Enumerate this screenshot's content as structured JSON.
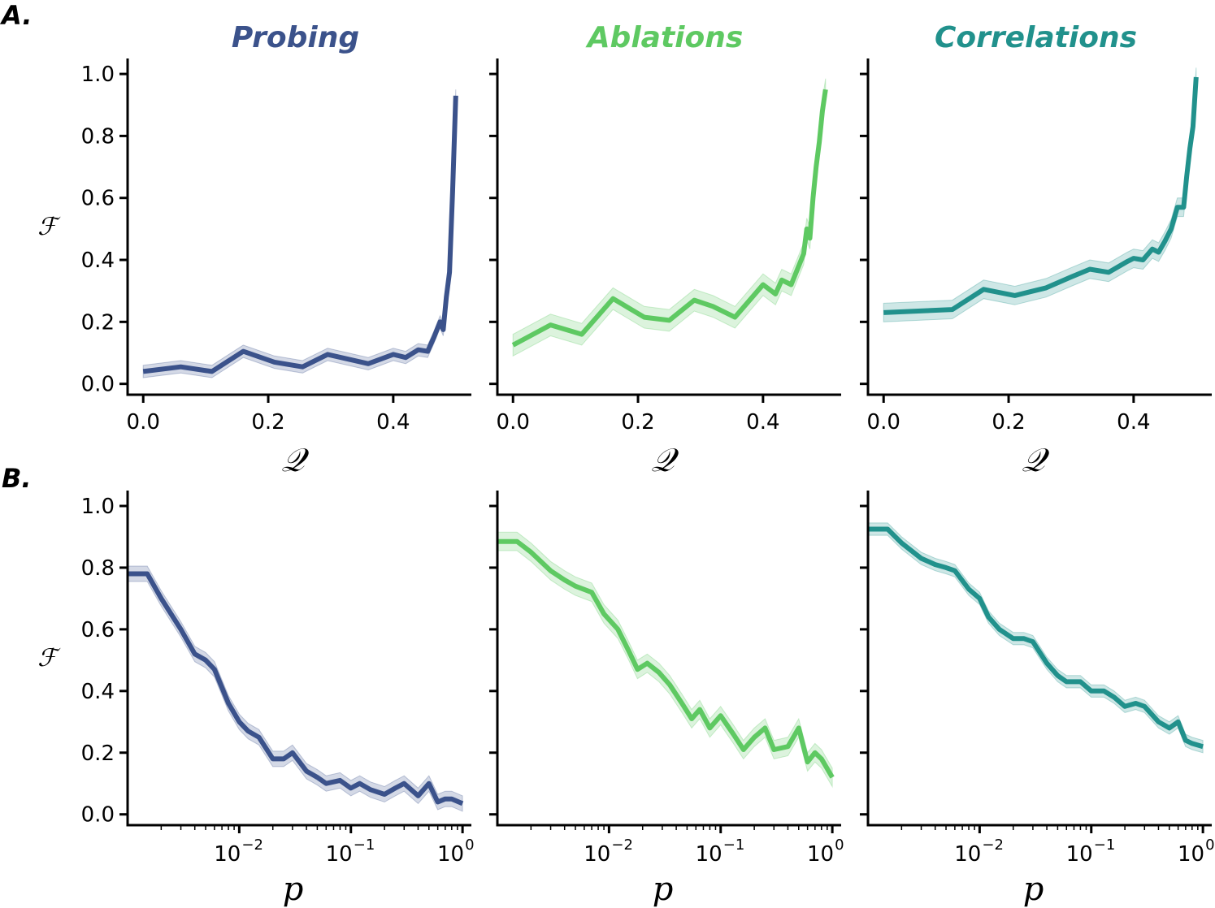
{
  "panel_labels": [
    "A.",
    "B."
  ],
  "colors": {
    "Probing": "#3b528b",
    "Ablations": "#5ec962",
    "Correlations": "#21918c"
  },
  "chart_data": [
    {
      "type": "line",
      "row": "A",
      "title": "Probing",
      "color": "#3b528b",
      "xlabel": "𝒬",
      "ylabel": "ℱ",
      "xscale": "linear",
      "xlim": [
        -0.025,
        0.525
      ],
      "ylim": [
        -0.035,
        1.05
      ],
      "xticks": [
        0.0,
        0.2,
        0.4
      ],
      "xtick_labels": [
        "0.0",
        "0.2",
        "0.4"
      ],
      "yticks": [
        0.0,
        0.2,
        0.4,
        0.6,
        0.8,
        1.0
      ],
      "ytick_labels": [
        "0.0",
        "0.2",
        "0.4",
        "0.6",
        "0.8",
        "1.0"
      ],
      "band": 0.02,
      "x": [
        0.0,
        0.06,
        0.11,
        0.16,
        0.21,
        0.255,
        0.295,
        0.36,
        0.4,
        0.42,
        0.44,
        0.455,
        0.465,
        0.475,
        0.48,
        0.485,
        0.49,
        0.495,
        0.5
      ],
      "y": [
        0.04,
        0.055,
        0.04,
        0.105,
        0.07,
        0.055,
        0.095,
        0.065,
        0.095,
        0.085,
        0.11,
        0.105,
        0.15,
        0.2,
        0.175,
        0.28,
        0.36,
        0.62,
        0.93
      ]
    },
    {
      "type": "line",
      "row": "A",
      "title": "Ablations",
      "color": "#5ec962",
      "xlabel": "𝒬",
      "ylabel": "",
      "xscale": "linear",
      "xlim": [
        -0.025,
        0.525
      ],
      "ylim": [
        -0.035,
        1.05
      ],
      "xticks": [
        0.0,
        0.2,
        0.4
      ],
      "xtick_labels": [
        "0.0",
        "0.2",
        "0.4"
      ],
      "yticks": [
        0.0,
        0.2,
        0.4,
        0.6,
        0.8,
        1.0
      ],
      "ytick_labels": [
        "",
        "",
        "",
        "",
        "",
        ""
      ],
      "band": 0.035,
      "x": [
        0.0,
        0.06,
        0.11,
        0.16,
        0.21,
        0.25,
        0.29,
        0.32,
        0.355,
        0.4,
        0.42,
        0.43,
        0.445,
        0.455,
        0.465,
        0.47,
        0.475,
        0.48,
        0.485,
        0.49,
        0.495,
        0.5
      ],
      "y": [
        0.125,
        0.19,
        0.16,
        0.275,
        0.215,
        0.205,
        0.27,
        0.25,
        0.215,
        0.32,
        0.29,
        0.335,
        0.32,
        0.37,
        0.42,
        0.5,
        0.47,
        0.6,
        0.7,
        0.78,
        0.88,
        0.95
      ]
    },
    {
      "type": "line",
      "row": "A",
      "title": "Correlations",
      "color": "#21918c",
      "xlabel": "𝒬",
      "ylabel": "",
      "xscale": "linear",
      "xlim": [
        -0.025,
        0.525
      ],
      "ylim": [
        -0.035,
        1.05
      ],
      "xticks": [
        0.0,
        0.2,
        0.4
      ],
      "xtick_labels": [
        "0.0",
        "0.2",
        "0.4"
      ],
      "yticks": [
        0.0,
        0.2,
        0.4,
        0.6,
        0.8,
        1.0
      ],
      "ytick_labels": [
        "",
        "",
        "",
        "",
        "",
        ""
      ],
      "band": 0.03,
      "x": [
        0.0,
        0.11,
        0.16,
        0.21,
        0.26,
        0.3,
        0.33,
        0.36,
        0.39,
        0.4,
        0.415,
        0.43,
        0.44,
        0.45,
        0.46,
        0.47,
        0.48,
        0.485,
        0.49,
        0.495,
        0.5
      ],
      "y": [
        0.23,
        0.24,
        0.305,
        0.285,
        0.31,
        0.345,
        0.37,
        0.36,
        0.395,
        0.405,
        0.4,
        0.435,
        0.425,
        0.46,
        0.5,
        0.57,
        0.57,
        0.67,
        0.76,
        0.83,
        0.99
      ]
    },
    {
      "type": "line",
      "row": "B",
      "title": "",
      "color": "#3b528b",
      "xlabel": "p",
      "ylabel": "ℱ",
      "xscale": "log",
      "xlim": [
        0.001,
        1.2
      ],
      "ylim": [
        -0.035,
        1.05
      ],
      "xticks": [
        0.01,
        0.1,
        1
      ],
      "xtick_bases": [
        "10",
        "10",
        "10"
      ],
      "xtick_exps": [
        "−2",
        "−1",
        "0"
      ],
      "yticks": [
        0.0,
        0.2,
        0.4,
        0.6,
        0.8,
        1.0
      ],
      "ytick_labels": [
        "0.0",
        "0.2",
        "0.4",
        "0.6",
        "0.8",
        "1.0"
      ],
      "band": 0.025,
      "x": [
        0.001,
        0.0015,
        0.002,
        0.003,
        0.004,
        0.005,
        0.006,
        0.008,
        0.01,
        0.012,
        0.015,
        0.02,
        0.025,
        0.03,
        0.04,
        0.05,
        0.06,
        0.08,
        0.1,
        0.12,
        0.15,
        0.2,
        0.25,
        0.3,
        0.4,
        0.5,
        0.6,
        0.7,
        0.8,
        1.0
      ],
      "y": [
        0.78,
        0.78,
        0.7,
        0.6,
        0.52,
        0.5,
        0.47,
        0.36,
        0.3,
        0.27,
        0.25,
        0.18,
        0.18,
        0.2,
        0.14,
        0.12,
        0.1,
        0.11,
        0.085,
        0.1,
        0.08,
        0.065,
        0.085,
        0.1,
        0.06,
        0.1,
        0.04,
        0.05,
        0.05,
        0.035
      ]
    },
    {
      "type": "line",
      "row": "B",
      "title": "",
      "color": "#5ec962",
      "xlabel": "p",
      "ylabel": "",
      "xscale": "log",
      "xlim": [
        0.001,
        1.2
      ],
      "ylim": [
        -0.035,
        1.05
      ],
      "xticks": [
        0.01,
        0.1,
        1
      ],
      "xtick_bases": [
        "10",
        "10",
        "10"
      ],
      "xtick_exps": [
        "−2",
        "−1",
        "0"
      ],
      "yticks": [
        0.0,
        0.2,
        0.4,
        0.6,
        0.8,
        1.0
      ],
      "ytick_labels": [
        "",
        "",
        "",
        "",
        "",
        ""
      ],
      "band": 0.03,
      "x": [
        0.001,
        0.0015,
        0.002,
        0.003,
        0.004,
        0.005,
        0.007,
        0.009,
        0.012,
        0.015,
        0.018,
        0.022,
        0.028,
        0.035,
        0.045,
        0.055,
        0.065,
        0.08,
        0.1,
        0.13,
        0.16,
        0.2,
        0.25,
        0.3,
        0.4,
        0.5,
        0.6,
        0.7,
        0.8,
        1.0
      ],
      "y": [
        0.885,
        0.885,
        0.85,
        0.79,
        0.76,
        0.74,
        0.72,
        0.65,
        0.6,
        0.53,
        0.47,
        0.49,
        0.46,
        0.42,
        0.36,
        0.31,
        0.34,
        0.28,
        0.32,
        0.26,
        0.21,
        0.25,
        0.28,
        0.21,
        0.22,
        0.28,
        0.17,
        0.2,
        0.18,
        0.12
      ]
    },
    {
      "type": "line",
      "row": "B",
      "title": "",
      "color": "#21918c",
      "xlabel": "p",
      "ylabel": "",
      "xscale": "log",
      "xlim": [
        0.001,
        1.2
      ],
      "ylim": [
        -0.035,
        1.05
      ],
      "xticks": [
        0.01,
        0.1,
        1
      ],
      "xtick_bases": [
        "10",
        "10",
        "10"
      ],
      "xtick_exps": [
        "−2",
        "−1",
        "0"
      ],
      "yticks": [
        0.0,
        0.2,
        0.4,
        0.6,
        0.8,
        1.0
      ],
      "ytick_labels": [
        "",
        "",
        "",
        "",
        "",
        ""
      ],
      "band": 0.02,
      "x": [
        0.001,
        0.0015,
        0.002,
        0.003,
        0.004,
        0.005,
        0.006,
        0.008,
        0.01,
        0.012,
        0.015,
        0.02,
        0.025,
        0.03,
        0.04,
        0.05,
        0.06,
        0.08,
        0.1,
        0.13,
        0.16,
        0.2,
        0.25,
        0.3,
        0.4,
        0.5,
        0.6,
        0.7,
        0.8,
        1.0
      ],
      "y": [
        0.925,
        0.925,
        0.88,
        0.83,
        0.81,
        0.8,
        0.79,
        0.73,
        0.7,
        0.64,
        0.6,
        0.57,
        0.57,
        0.56,
        0.49,
        0.45,
        0.43,
        0.43,
        0.4,
        0.4,
        0.38,
        0.35,
        0.36,
        0.35,
        0.3,
        0.28,
        0.3,
        0.24,
        0.23,
        0.22
      ]
    }
  ]
}
